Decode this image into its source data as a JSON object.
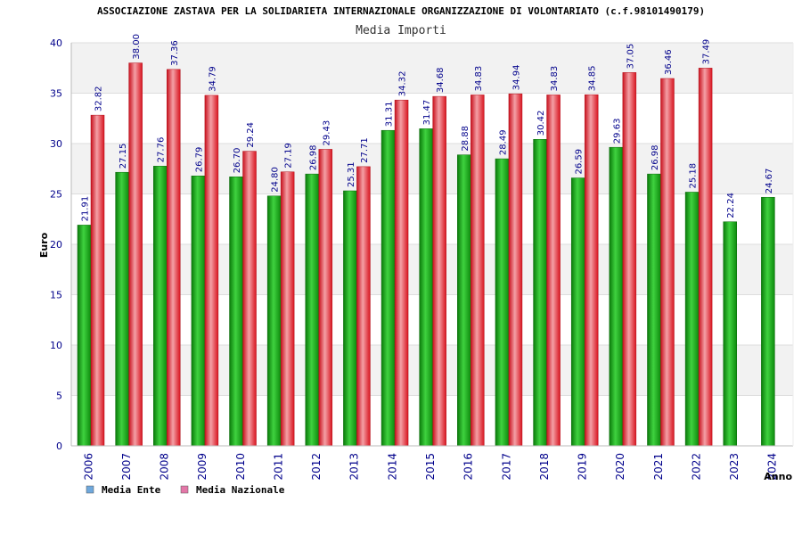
{
  "chart_data": {
    "type": "bar",
    "title": "ASSOCIAZIONE ZASTAVA PER LA SOLIDARIETA INTERNAZIONALE ORGANIZZAZIONE DI VOLONTARIATO (c.f.98101490179)",
    "subtitle": "Media Importi",
    "xlabel": "Anno",
    "ylabel": "Euro",
    "ylim": [
      0,
      40
    ],
    "yticks": [
      0,
      5,
      10,
      15,
      20,
      25,
      30,
      35,
      40
    ],
    "grid": true,
    "legend_position": "bottom-left",
    "categories": [
      "2006",
      "2007",
      "2008",
      "2009",
      "2010",
      "2011",
      "2012",
      "2013",
      "2014",
      "2015",
      "2016",
      "2017",
      "2018",
      "2019",
      "2020",
      "2021",
      "2022",
      "2023",
      "2024"
    ],
    "series": [
      {
        "name": "Media Ente",
        "legend_color": "#6fa8dc",
        "bar_color": "#1fae1f",
        "values": [
          21.91,
          27.15,
          27.76,
          26.79,
          26.7,
          24.8,
          26.98,
          25.31,
          31.31,
          31.47,
          28.88,
          28.49,
          30.42,
          26.59,
          29.63,
          26.98,
          25.18,
          22.24,
          24.67
        ],
        "labels": [
          "21.91",
          "27.15",
          "27.76",
          "26.79",
          "26.70",
          "24.80",
          "26.98",
          "25.31",
          "31.31",
          "31.47",
          "28.88",
          "28.49",
          "30.42",
          "26.59",
          "29.63",
          "26.98",
          "25.18",
          "22.24",
          "24.67"
        ]
      },
      {
        "name": "Media Nazionale",
        "legend_color": "#e377a8",
        "bar_color": "#e8222e",
        "values": [
          32.82,
          38.0,
          37.36,
          34.79,
          29.24,
          27.19,
          29.43,
          27.71,
          34.32,
          34.68,
          34.83,
          34.94,
          34.83,
          34.85,
          37.05,
          36.46,
          37.49,
          null,
          null
        ],
        "labels": [
          "32.82",
          "38.00",
          "37.36",
          "34.79",
          "29.24",
          "27.19",
          "29.43",
          "27.71",
          "34.32",
          "34.68",
          "34.83",
          "34.94",
          "34.83",
          "34.85",
          "37.05",
          "36.46",
          "37.49",
          null,
          null
        ]
      }
    ]
  }
}
